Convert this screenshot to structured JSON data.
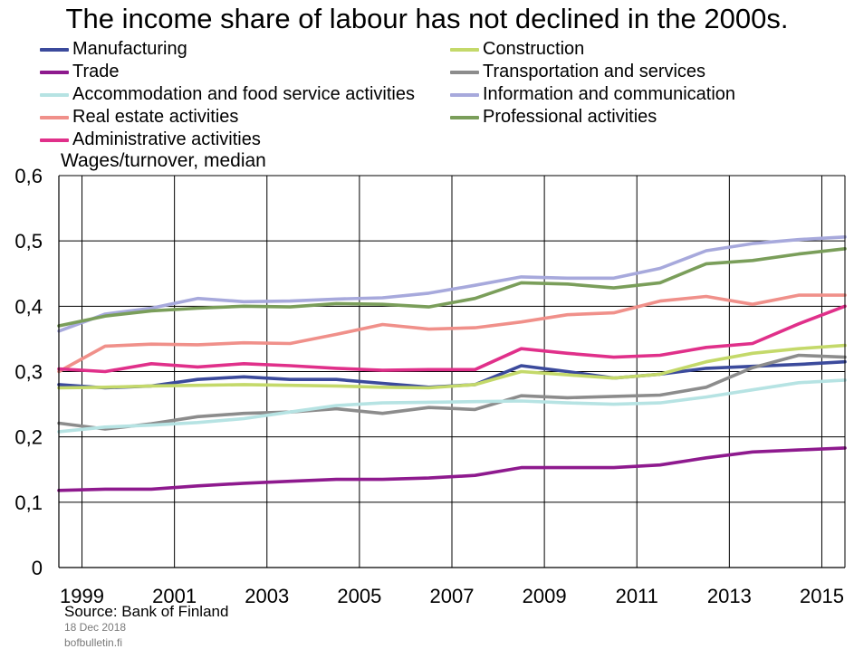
{
  "chart_data": {
    "type": "line",
    "title": "The income share of labour has not declined in the 2000s.",
    "ylabel": "Wages/turnover,  median",
    "xlabel": "",
    "x": [
      1998.5,
      1999.5,
      2000.5,
      2001.5,
      2002.5,
      2003.5,
      2004.5,
      2005.5,
      2006.5,
      2007.5,
      2008.5,
      2009.5,
      2010.5,
      2011.5,
      2012.5,
      2013.5,
      2014.5,
      2015.5
    ],
    "xlim": [
      1998.5,
      2015.5
    ],
    "xticks": [
      1999,
      2001,
      2003,
      2005,
      2007,
      2009,
      2011,
      2013,
      2015
    ],
    "xtick_labels": [
      "1999",
      "2001",
      "2003",
      "2005",
      "2007",
      "2009",
      "2011",
      "2013",
      "2015"
    ],
    "ylim": [
      0,
      0.6
    ],
    "yticks": [
      0,
      0.1,
      0.2,
      0.3,
      0.4,
      0.5,
      0.6
    ],
    "ytick_labels": [
      "0",
      "0,1",
      "0,2",
      "0,3",
      "0,4",
      "0,5",
      "0,6"
    ],
    "grid": true,
    "legend_position": "top",
    "series": [
      {
        "name": "Manufacturing",
        "color": "#3b4a9c",
        "values": [
          0.28,
          0.275,
          0.278,
          0.288,
          0.292,
          0.288,
          0.288,
          0.282,
          0.276,
          0.28,
          0.309,
          0.3,
          0.29,
          0.296,
          0.305,
          0.308,
          0.311,
          0.315
        ]
      },
      {
        "name": "Construction",
        "color": "#c4d96a",
        "values": [
          0.275,
          0.276,
          0.278,
          0.279,
          0.28,
          0.279,
          0.278,
          0.276,
          0.275,
          0.28,
          0.3,
          0.295,
          0.29,
          0.296,
          0.315,
          0.328,
          0.335,
          0.34
        ]
      },
      {
        "name": "Trade",
        "color": "#8e1a8e",
        "values": [
          0.118,
          0.12,
          0.12,
          0.125,
          0.129,
          0.132,
          0.135,
          0.135,
          0.137,
          0.141,
          0.153,
          0.153,
          0.153,
          0.157,
          0.168,
          0.177,
          0.18,
          0.183
        ]
      },
      {
        "name": "Transportation and services",
        "color": "#8c8c8c",
        "values": [
          0.221,
          0.212,
          0.22,
          0.231,
          0.236,
          0.238,
          0.243,
          0.236,
          0.245,
          0.242,
          0.263,
          0.26,
          0.262,
          0.264,
          0.276,
          0.306,
          0.325,
          0.322
        ]
      },
      {
        "name": "Accommodation and food service activities",
        "color": "#b6e3e3",
        "values": [
          0.208,
          0.215,
          0.218,
          0.222,
          0.228,
          0.238,
          0.248,
          0.252,
          0.253,
          0.254,
          0.255,
          0.252,
          0.25,
          0.252,
          0.261,
          0.272,
          0.283,
          0.287
        ]
      },
      {
        "name": "Information and communication",
        "color": "#a7a9dc",
        "values": [
          0.362,
          0.388,
          0.397,
          0.412,
          0.407,
          0.408,
          0.411,
          0.413,
          0.42,
          0.432,
          0.445,
          0.443,
          0.443,
          0.458,
          0.485,
          0.496,
          0.502,
          0.506
        ]
      },
      {
        "name": "Real estate activities",
        "color": "#f0908a",
        "values": [
          0.3,
          0.339,
          0.342,
          0.341,
          0.344,
          0.343,
          0.357,
          0.372,
          0.365,
          0.367,
          0.376,
          0.387,
          0.39,
          0.408,
          0.415,
          0.403,
          0.417,
          0.417
        ]
      },
      {
        "name": "Professional activities",
        "color": "#7a9e5a",
        "values": [
          0.37,
          0.385,
          0.393,
          0.397,
          0.4,
          0.399,
          0.404,
          0.403,
          0.399,
          0.412,
          0.436,
          0.434,
          0.428,
          0.436,
          0.465,
          0.47,
          0.48,
          0.488
        ]
      },
      {
        "name": "Administrative activities",
        "color": "#e0308a",
        "values": [
          0.304,
          0.3,
          0.312,
          0.307,
          0.312,
          0.309,
          0.305,
          0.302,
          0.303,
          0.303,
          0.335,
          0.328,
          0.322,
          0.325,
          0.337,
          0.343,
          0.373,
          0.4
        ]
      }
    ]
  },
  "source": "Source:  Bank of Finland",
  "date": "18 Dec 2018",
  "site": "bofbulletin.fi"
}
